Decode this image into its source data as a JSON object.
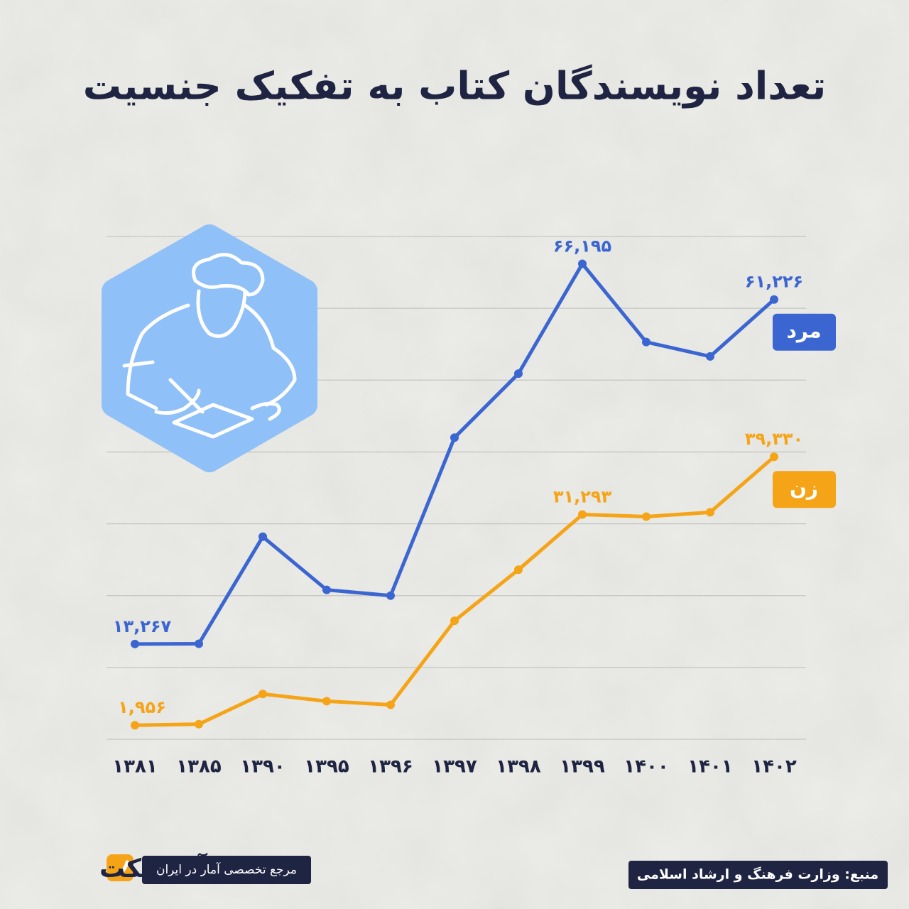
{
  "chart_data": {
    "type": "line",
    "title": "تعداد نویسندگان کتاب به تفکیک جنسیت",
    "categories": [
      "۱۳۸۱",
      "۱۳۸۵",
      "۱۳۹۰",
      "۱۳۹۵",
      "۱۳۹۶",
      "۱۳۹۷",
      "۱۳۹۸",
      "۱۳۹۹",
      "۱۴۰۰",
      "۱۴۰۱",
      "۱۴۰۲"
    ],
    "series": [
      {
        "name": "مرد",
        "color": "#3b66d1",
        "values": [
          13267,
          13300,
          28200,
          20800,
          20000,
          42000,
          50900,
          66195,
          55300,
          53300,
          61226
        ],
        "value_labels": [
          "۱۳,۲۶۷",
          null,
          null,
          null,
          null,
          null,
          null,
          "۶۶,۱۹۵",
          null,
          null,
          "۶۱,۲۲۶"
        ]
      },
      {
        "name": "زن",
        "color": "#f5a417",
        "values": [
          1956,
          2100,
          6300,
          5300,
          4800,
          16500,
          23600,
          31293,
          31000,
          31600,
          39330
        ],
        "value_labels": [
          "۱,۹۵۶",
          null,
          null,
          null,
          null,
          null,
          null,
          "۳۱,۲۹۳",
          null,
          null,
          "۳۹,۳۳۰"
        ]
      }
    ],
    "ylim": [
      0,
      70000
    ],
    "ygrid": [
      0,
      10000,
      20000,
      30000,
      40000,
      50000,
      60000,
      70000
    ],
    "grid": true
  },
  "footer": {
    "brand": "آمارفکت",
    "tagline": "مرجع تخصصی آمار در ایران",
    "source": "منبع: وزارت فرهنگ و ارشاد اسلامی"
  }
}
